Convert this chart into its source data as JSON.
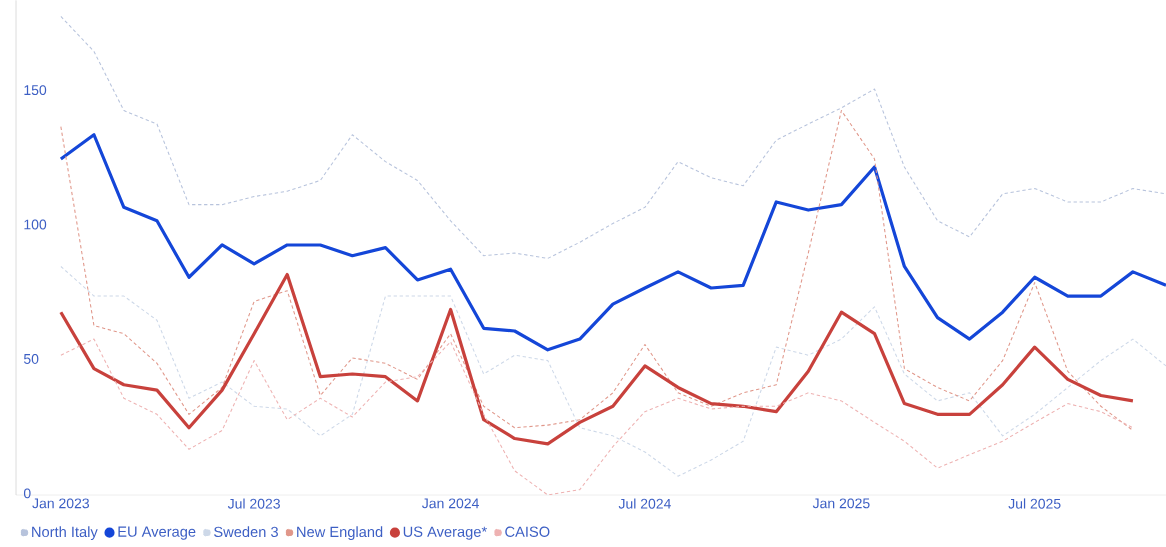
{
  "chart_data": {
    "type": "line",
    "x": [
      "2023-01",
      "2023-02",
      "2023-03",
      "2023-04",
      "2023-05",
      "2023-06",
      "2023-07",
      "2023-08",
      "2023-09",
      "2023-10",
      "2023-11",
      "2023-12",
      "2024-01",
      "2024-02",
      "2024-03",
      "2024-04",
      "2024-05",
      "2024-06",
      "2024-07",
      "2024-08",
      "2024-09",
      "2024-10",
      "2024-11",
      "2024-12",
      "2025-01",
      "2025-02",
      "2025-03",
      "2025-04",
      "2025-05",
      "2025-06",
      "2025-07",
      "2025-08",
      "2025-09",
      "2025-10",
      "2025-11"
    ],
    "series": [
      {
        "name": "North Italy",
        "color": "#b7c3dc",
        "line_style": "dashed",
        "values": [
          178,
          165,
          143,
          138,
          108,
          108,
          111,
          113,
          117,
          134,
          124,
          117,
          102,
          89,
          90,
          88,
          94,
          101,
          107,
          124,
          118,
          115,
          132,
          138,
          144,
          151,
          122,
          102,
          96,
          112,
          114,
          109,
          109,
          114,
          112
        ]
      },
      {
        "name": "EU Average",
        "color": "#1446d8",
        "line_style": "solid",
        "values": [
          125,
          134,
          107,
          102,
          81,
          93,
          86,
          93,
          93,
          89,
          92,
          80,
          84,
          62,
          61,
          54,
          58,
          71,
          77,
          83,
          77,
          78,
          109,
          106,
          108,
          122,
          85,
          66,
          58,
          68,
          81,
          74,
          74,
          83,
          78
        ]
      },
      {
        "name": "Sweden 3",
        "color": "#cdd8e8",
        "line_style": "dashed",
        "values": [
          85,
          74,
          74,
          65,
          36,
          42,
          33,
          32,
          22,
          30,
          74,
          74,
          74,
          45,
          52,
          50,
          25,
          22,
          16,
          7,
          13,
          20,
          55,
          52,
          58,
          70,
          45,
          35,
          38,
          22,
          30,
          40,
          50,
          58,
          48
        ]
      },
      {
        "name": "New England",
        "color": "#e0978a",
        "line_style": "dashed",
        "values": [
          137,
          63,
          60,
          49,
          30,
          40,
          72,
          76,
          37,
          51,
          49,
          43,
          60,
          33,
          25,
          26,
          28,
          38,
          56,
          38,
          33,
          38,
          41,
          90,
          143,
          125,
          47,
          40,
          35,
          50,
          79,
          46,
          33,
          24,
          null
        ]
      },
      {
        "name": "US Average*",
        "color": "#c8413c",
        "line_style": "solid",
        "values": [
          68,
          47,
          41,
          39,
          25,
          39,
          60,
          82,
          44,
          45,
          44,
          35,
          69,
          28,
          21,
          19,
          27,
          33,
          48,
          40,
          34,
          33,
          31,
          46,
          68,
          60,
          34,
          30,
          30,
          41,
          55,
          43,
          37,
          35,
          null
        ]
      },
      {
        "name": "CAISO",
        "color": "#eeb2b2",
        "line_style": "dashed",
        "values": [
          52,
          58,
          36,
          30,
          17,
          24,
          50,
          28,
          36,
          29,
          42,
          44,
          57,
          30,
          9,
          0,
          2,
          18,
          31,
          36,
          32,
          33,
          33,
          38,
          35,
          27,
          20,
          10,
          15,
          20,
          27,
          34,
          31,
          25,
          null
        ]
      }
    ],
    "xlim": [
      "2022-11-20",
      "2025-11-01"
    ],
    "xticks": [
      {
        "value": "2023-01",
        "label": "Jan 2023"
      },
      {
        "value": "2023-07",
        "label": "Jul 2023"
      },
      {
        "value": "2024-01",
        "label": "Jan 2024"
      },
      {
        "value": "2024-07",
        "label": "Jul 2024"
      },
      {
        "value": "2025-01",
        "label": "Jan 2025"
      },
      {
        "value": "2025-07",
        "label": "Jul 2025"
      }
    ],
    "ylim": [
      0,
      184
    ],
    "yticks": [
      0,
      50,
      100,
      150
    ],
    "legend": "bottom left"
  }
}
